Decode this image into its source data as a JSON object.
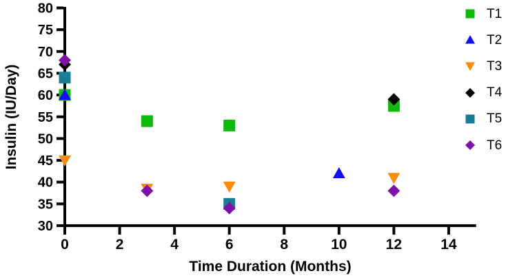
{
  "chart_data": {
    "type": "scatter",
    "title": "",
    "xlabel": "Time Duration (Months)",
    "ylabel": "Insulin (IU/Day)",
    "xlim": [
      0,
      15
    ],
    "ylim": [
      30,
      80
    ],
    "xticks": [
      0,
      2,
      4,
      6,
      8,
      10,
      12,
      14
    ],
    "yticks": [
      30,
      35,
      40,
      45,
      50,
      55,
      60,
      65,
      70,
      75,
      80
    ],
    "grid": false,
    "legend_position": "right-outside",
    "background_color": "#ffffff",
    "axis_color": "#000000",
    "series": [
      {
        "name": "T1",
        "marker": "square",
        "color": "#0CBB0C",
        "points": [
          [
            0,
            60
          ],
          [
            3,
            54
          ],
          [
            6,
            53
          ],
          [
            12,
            57.5
          ]
        ]
      },
      {
        "name": "T2",
        "marker": "triangle-up",
        "color": "#1111EE",
        "points": [
          [
            0,
            60
          ],
          [
            10,
            42
          ]
        ]
      },
      {
        "name": "T3",
        "marker": "triangle-down",
        "color": "#FF8A10",
        "points": [
          [
            0,
            45
          ],
          [
            3,
            38.5
          ],
          [
            6,
            39
          ],
          [
            12,
            41
          ]
        ]
      },
      {
        "name": "T4",
        "marker": "diamond",
        "color": "#050505",
        "points": [
          [
            0,
            67
          ],
          [
            12,
            59
          ]
        ]
      },
      {
        "name": "T5",
        "marker": "square",
        "color": "#1A7D96",
        "points": [
          [
            0,
            64
          ],
          [
            6,
            35
          ]
        ]
      },
      {
        "name": "T6",
        "marker": "diamond",
        "color": "#7E11A6",
        "points": [
          [
            0,
            68
          ],
          [
            3,
            38
          ],
          [
            6,
            34
          ],
          [
            12,
            38
          ]
        ]
      }
    ]
  }
}
